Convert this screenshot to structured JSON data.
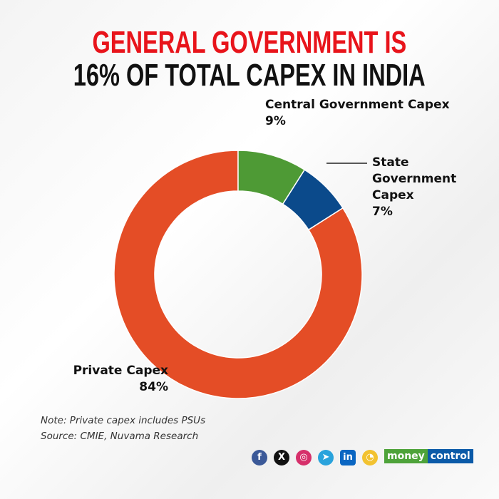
{
  "title_line1": "GENERAL GOVERNMENT IS",
  "title_line2": "16% OF TOTAL CAPEX IN INDIA",
  "chart_data": {
    "type": "pie",
    "donut": true,
    "slices": [
      {
        "label": "Central Government Capex",
        "value": 9,
        "value_label": "9%",
        "color": "#4e9a35"
      },
      {
        "label": "State Government Capex",
        "value": 7,
        "value_label": "7%",
        "color": "#0b4a8b"
      },
      {
        "label": "Private Capex",
        "value": 84,
        "value_label": "84%",
        "color": "#e44d26"
      }
    ]
  },
  "labels": {
    "central": "Central Government Capex",
    "central_pct": "9%",
    "state_1": "State",
    "state_2": "Government",
    "state_3": "Capex",
    "state_pct": "7%",
    "private": "Private Capex",
    "private_pct": "84%"
  },
  "note": "Note: Private capex includes PSUs",
  "source": "Source: CMIE, Nuvama Research",
  "social": [
    {
      "name": "facebook-icon",
      "glyph": "f",
      "color": "#3b5998"
    },
    {
      "name": "x-icon",
      "glyph": "X",
      "color": "#111111"
    },
    {
      "name": "instagram-icon",
      "glyph": "◎",
      "color": "#d6306b"
    },
    {
      "name": "telegram-icon",
      "glyph": "➤",
      "color": "#2aa3dc"
    },
    {
      "name": "linkedin-icon",
      "glyph": "in",
      "color": "#0a66c2"
    },
    {
      "name": "koo-icon",
      "glyph": "◔",
      "color": "#f2c230"
    }
  ],
  "brand": {
    "part1": "money",
    "part2": "control",
    "color1": "#4ea33a",
    "color2": "#0b5aa8"
  }
}
